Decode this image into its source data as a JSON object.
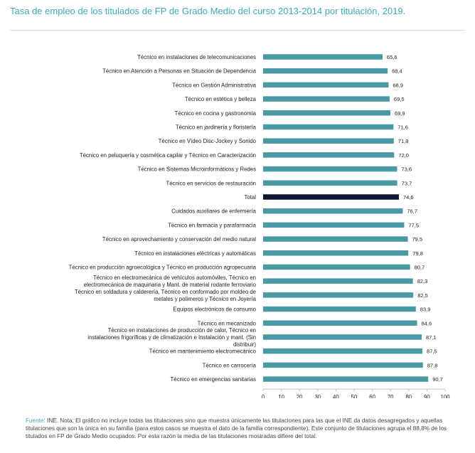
{
  "header": {
    "title": "Tasa de empleo de los titulados de FP de Grado Medio del curso 2013-2014 por titulación, 2019."
  },
  "footer": {
    "source_label": "Fuente:",
    "note": "INE. Nota: El gráfico no incluye todas las titulaciones sino que muestra únicamente las titulaciones para las que el INE da datos desagregados y aquellas titulaciones que son la única en su familia (para estos casos se muestra el dato de la familia correspondiente). Este conjunto de titulaciones agrupa el 88,8% de los titulados en FP de Grado Medio ocupados. Por esta razón la media de las titulaciones mostradas difiere del total."
  },
  "colors": {
    "bar": "#4a9aa5",
    "highlight": "#0d1a33",
    "title": "#3fa9b8"
  },
  "chart_data": {
    "type": "bar",
    "orientation": "horizontal",
    "categories": [
      "Técnico en instalaciones de telecomunicaciones",
      "Técnico en Atención a Personas en Situación de Dependencia",
      "Técnico en Gestión Administrativa",
      "Técnico en estética y belleza",
      "Técnico en cocina y gastronomía",
      "Técnico en jardinería y floristería",
      "Técnico en Vídeo Disc-Jockey y Sonido",
      "Técnico en peluquería y cosmética capilar y Técnico en Caracterización",
      "Técnico en Sistemas Microinformáticos y Redes",
      "Técnico en servicios de restauración",
      "Total",
      "Cuidados auxiliares de enfermería",
      "Técnico en farmacia y parafarmacia",
      "Técnico en aprovechamiento y conservación del medio natural",
      "Técnico en instalaciones eléctricas y automáticas",
      "Técnico en producción agroecológica y Técnico en producción agropecuaria",
      "Técnico en electromecánica de vehículos automóviles, Técnico en electromecánica de maquinaria y Mant. de material rodante ferroviario",
      "Técnico en soldadura y calderería, Técnico en conformado por moldeo de metales y polímeros y Técnico en Joyería",
      "Equipos electrónicos de consumo",
      "Técnico en mecanizado",
      "Técnico en instalaciones de producción de calor, Técnico en instalaciones frigoríficas y de climatización e Instalación y mant. (Sin distribuir)",
      "Técnico en mantenimiento electromecánico",
      "Técnico en carrocería",
      "Técnico en emergencias sanitarias"
    ],
    "values": [
      65.6,
      68.4,
      68.9,
      69.5,
      69.9,
      71.6,
      71.8,
      72.0,
      73.6,
      73.7,
      74.6,
      76.7,
      77.5,
      79.5,
      79.8,
      80.7,
      82.3,
      82.5,
      83.9,
      84.6,
      87.1,
      87.5,
      87.8,
      90.7
    ],
    "value_labels": [
      "65,6",
      "68,4",
      "68,9",
      "69,5",
      "69,9",
      "71,6",
      "71,8",
      "72,0",
      "73,6",
      "73,7",
      "74,6",
      "76,7",
      "77,5",
      "79,5",
      "79,8",
      "80,7",
      "82,3",
      "82,5",
      "83,9",
      "84,6",
      "87,1",
      "87,5",
      "87,8",
      "90,7"
    ],
    "highlight": "Total",
    "xlim": [
      0,
      100
    ],
    "xticks": [
      0,
      10,
      20,
      30,
      40,
      50,
      60,
      70,
      80,
      90,
      100
    ],
    "grid": false
  }
}
